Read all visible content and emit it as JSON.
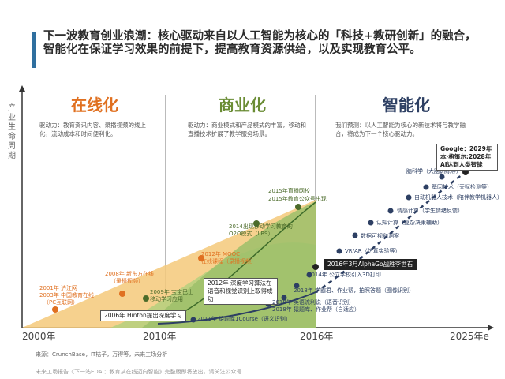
{
  "headline": "下一波教育创业浪潮：核心驱动来自以人工智能为核心的「科技+教研创新」的融合，智能化在保证学习效果的前提下，提高教育资源供给，以及实现教育公平。",
  "y_axis_label": "产业生命周期",
  "phases": [
    {
      "title": "在线化",
      "desc": "驱动力：教育资讯内容、录播视频的线上化，流动成本和时间便利化。"
    },
    {
      "title": "商业化",
      "desc": "驱动力：商业模式和产品模式的丰富，移动和直播技术扩展了教学服务场景。"
    },
    {
      "title": "智能化",
      "desc": "我们预测：以人工智能为核心的新技术将与教学融合，将成为下一个核心驱动力。"
    }
  ],
  "years": [
    "2000年",
    "2010年",
    "2016年",
    "2025年e"
  ],
  "events_online": [
    "2001年 沪江网",
    "2003年 中国教育在线",
    "（PC互联网）",
    "2008年 新东方在线",
    "（录播视频）"
  ],
  "event_2006": "2006年 Hinton提出深度学习",
  "events_commercial": [
    "2009年 宝宝巴士",
    "移动学习应用",
    "2012年 MOOC",
    "在线课程（录播视频）",
    "2014出现移动学习教育的O2O模式（LBS）",
    "2015年直播网校",
    "2015年教育公众号出现"
  ],
  "box_2012_deep": "2012年 深度学习算法在语音和视觉识别上取得成功",
  "box_2011": "2011年 猿题库1Course（语义识别）",
  "events_ai": [
    "2018年 猿题库、作业帮（自适应）",
    "2018年 英语流利说（语音识别）",
    "2018年 学霸君、作业帮，拍照答题（图像识别）",
    "2014年 公立学校引入3D打印",
    "2016年3月AlphaGo战胜李世石",
    "VR/AR（仿真实验等）",
    "数据可视和洞察",
    "认知计算（复杂决策辅助）",
    "情感计算（学生情绪反馈）",
    "自动机器人技术（陪伴教学机器人）",
    "基因技术（天赋检测等）",
    "脑科学（大脑训练等）"
  ],
  "google_box": "Google：2029年本·格策尔:2028年AI达到人类智能",
  "source": "来源：CrunchBase，IT桔子，万得等，未来工场分析",
  "note": "未来工场报告《下一站EDAI：教育从在线迈向智能》完整版即将放出，请关注公众号"
}
